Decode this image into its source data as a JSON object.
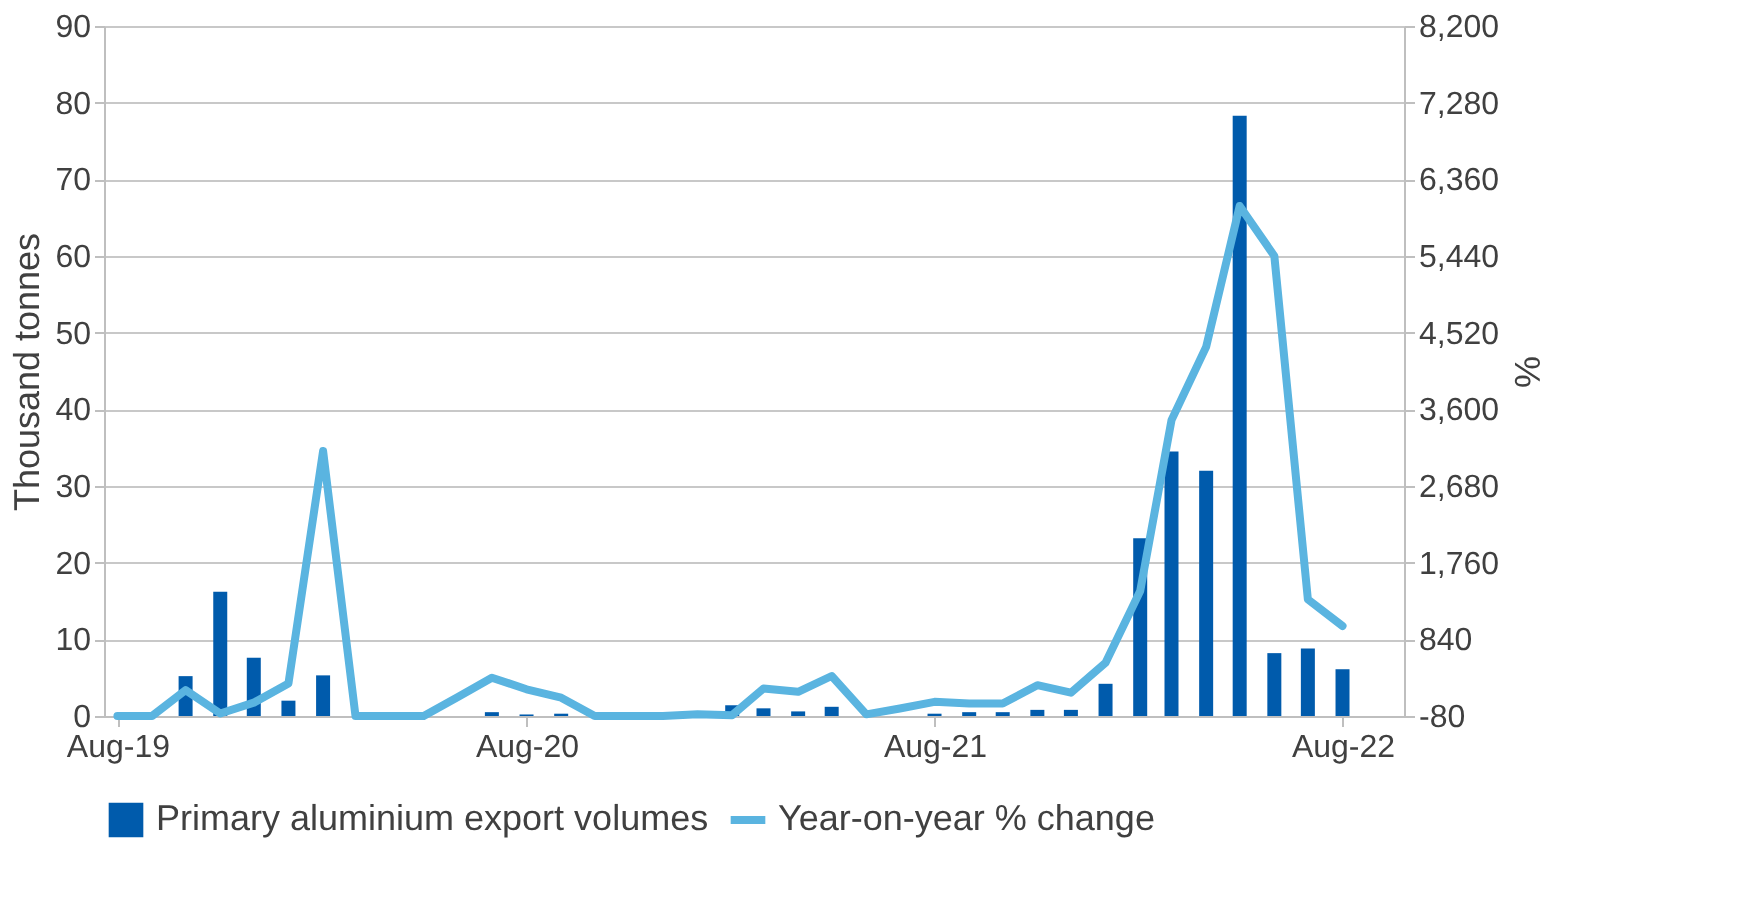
{
  "chart_data": {
    "type": "bar",
    "x": [
      "2019-08",
      "2019-09",
      "2019-10",
      "2019-11",
      "2019-12",
      "2020-01",
      "2020-02",
      "2020-03",
      "2020-04",
      "2020-05",
      "2020-06",
      "2020-07",
      "2020-08",
      "2020-09",
      "2020-10",
      "2020-11",
      "2020-12",
      "2021-01",
      "2021-02",
      "2021-03",
      "2021-04",
      "2021-05",
      "2021-06",
      "2021-07",
      "2021-08",
      "2021-09",
      "2021-10",
      "2021-11",
      "2021-12",
      "2022-01",
      "2022-02",
      "2022-03",
      "2022-04",
      "2022-05",
      "2022-06",
      "2022-07",
      "2022-08"
    ],
    "series": [
      {
        "name": "Primary aluminium export volumes",
        "color": "#005bac",
        "values": [
          0,
          0,
          5.2,
          16.2,
          7.6,
          2,
          5.3,
          0,
          0,
          0,
          0,
          0.5,
          0.2,
          0.3,
          0,
          0,
          0,
          0,
          1.4,
          1,
          0.6,
          1.2,
          0,
          0,
          0.3,
          0.5,
          0.5,
          0.8,
          0.8,
          4.2,
          23.2,
          34.5,
          32,
          78.3,
          8.2,
          8.8,
          6.1
        ]
      },
      {
        "name": "Year-on-year % change",
        "type": "line",
        "axis": "y2",
        "color": "#5ab4e0",
        "values": [
          -80,
          -80,
          230,
          -50,
          80,
          310,
          3100,
          -80,
          -80,
          -80,
          150,
          380,
          240,
          140,
          -80,
          -80,
          -80,
          -60,
          -70,
          250,
          210,
          400,
          -60,
          10,
          90,
          70,
          70,
          290,
          200,
          560,
          1420,
          3470,
          4350,
          6040,
          5440,
          1320,
          1000
        ]
      }
    ],
    "ylabel": "Thousand tonnes",
    "y2label": "%",
    "ylim": [
      0,
      90
    ],
    "yticks": [
      0,
      10,
      20,
      30,
      40,
      50,
      60,
      70,
      80,
      90
    ],
    "y2lim": [
      -80,
      8200
    ],
    "y2ticks": [
      -80,
      840,
      {
        "value": 1760,
        "label": "1,760"
      },
      {
        "value": 2680,
        "label": "2,680"
      },
      {
        "value": 3600,
        "label": "3,600"
      },
      {
        "value": 4520,
        "label": "4,520"
      },
      {
        "value": 5440,
        "label": "5,440"
      },
      {
        "value": 6360,
        "label": "6,360"
      },
      {
        "value": 7280,
        "label": "7,280"
      },
      {
        "value": 8200,
        "label": "8,200"
      }
    ],
    "xlim": [
      "2019-07-20",
      "2022-09-25"
    ],
    "xticks": [
      {
        "value": "2019-08",
        "label": "Aug-19"
      },
      {
        "value": "2020-08",
        "label": "Aug-20"
      },
      {
        "value": "2021-08",
        "label": "Aug-21"
      },
      {
        "value": "2022-08",
        "label": "Aug-22"
      }
    ],
    "grid": "y",
    "legend": "bottom",
    "line_style": "solid",
    "marker": "none"
  }
}
